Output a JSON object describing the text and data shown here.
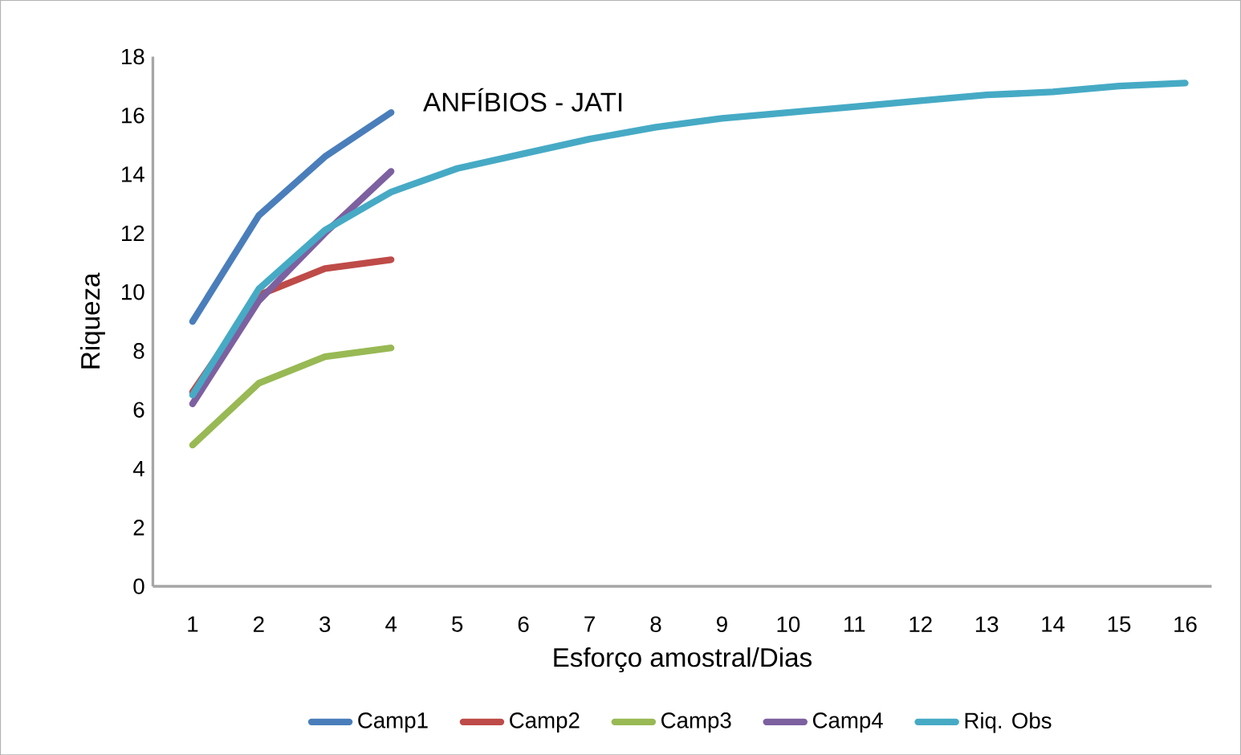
{
  "chart_data": {
    "type": "line",
    "title": "ANFÍBIOS - JATI",
    "xlabel": "Esforço amostral/Dias",
    "ylabel": "Riqueza",
    "categories": [
      "1",
      "2",
      "3",
      "4",
      "5",
      "6",
      "7",
      "8",
      "9",
      "10",
      "11",
      "12",
      "13",
      "14",
      "15",
      "16"
    ],
    "ylim": [
      0,
      18
    ],
    "yticks": [
      0,
      2,
      4,
      6,
      8,
      10,
      12,
      14,
      16,
      18
    ],
    "grid": false,
    "legend": "bottom",
    "marker": "none",
    "series": [
      {
        "name": "Camp1",
        "color": "#4a7ebb",
        "values": [
          9.0,
          12.6,
          14.6,
          16.1,
          null,
          null,
          null,
          null,
          null,
          null,
          null,
          null,
          null,
          null,
          null,
          null
        ]
      },
      {
        "name": "Camp2",
        "color": "#be4b48",
        "values": [
          6.6,
          9.9,
          10.8,
          11.1,
          null,
          null,
          null,
          null,
          null,
          null,
          null,
          null,
          null,
          null,
          null,
          null
        ]
      },
      {
        "name": "Camp3",
        "color": "#98b954",
        "values": [
          4.8,
          6.9,
          7.8,
          8.1,
          null,
          null,
          null,
          null,
          null,
          null,
          null,
          null,
          null,
          null,
          null,
          null
        ]
      },
      {
        "name": "Camp4",
        "color": "#7d60a0",
        "values": [
          6.2,
          9.7,
          12.0,
          14.1,
          null,
          null,
          null,
          null,
          null,
          null,
          null,
          null,
          null,
          null,
          null,
          null
        ]
      },
      {
        "name": "Riq. Obs",
        "color": "#46aac5",
        "values": [
          6.5,
          10.1,
          12.1,
          13.4,
          14.2,
          14.7,
          15.2,
          15.6,
          15.9,
          16.1,
          16.3,
          16.5,
          16.7,
          16.8,
          17.0,
          17.1
        ]
      }
    ]
  }
}
